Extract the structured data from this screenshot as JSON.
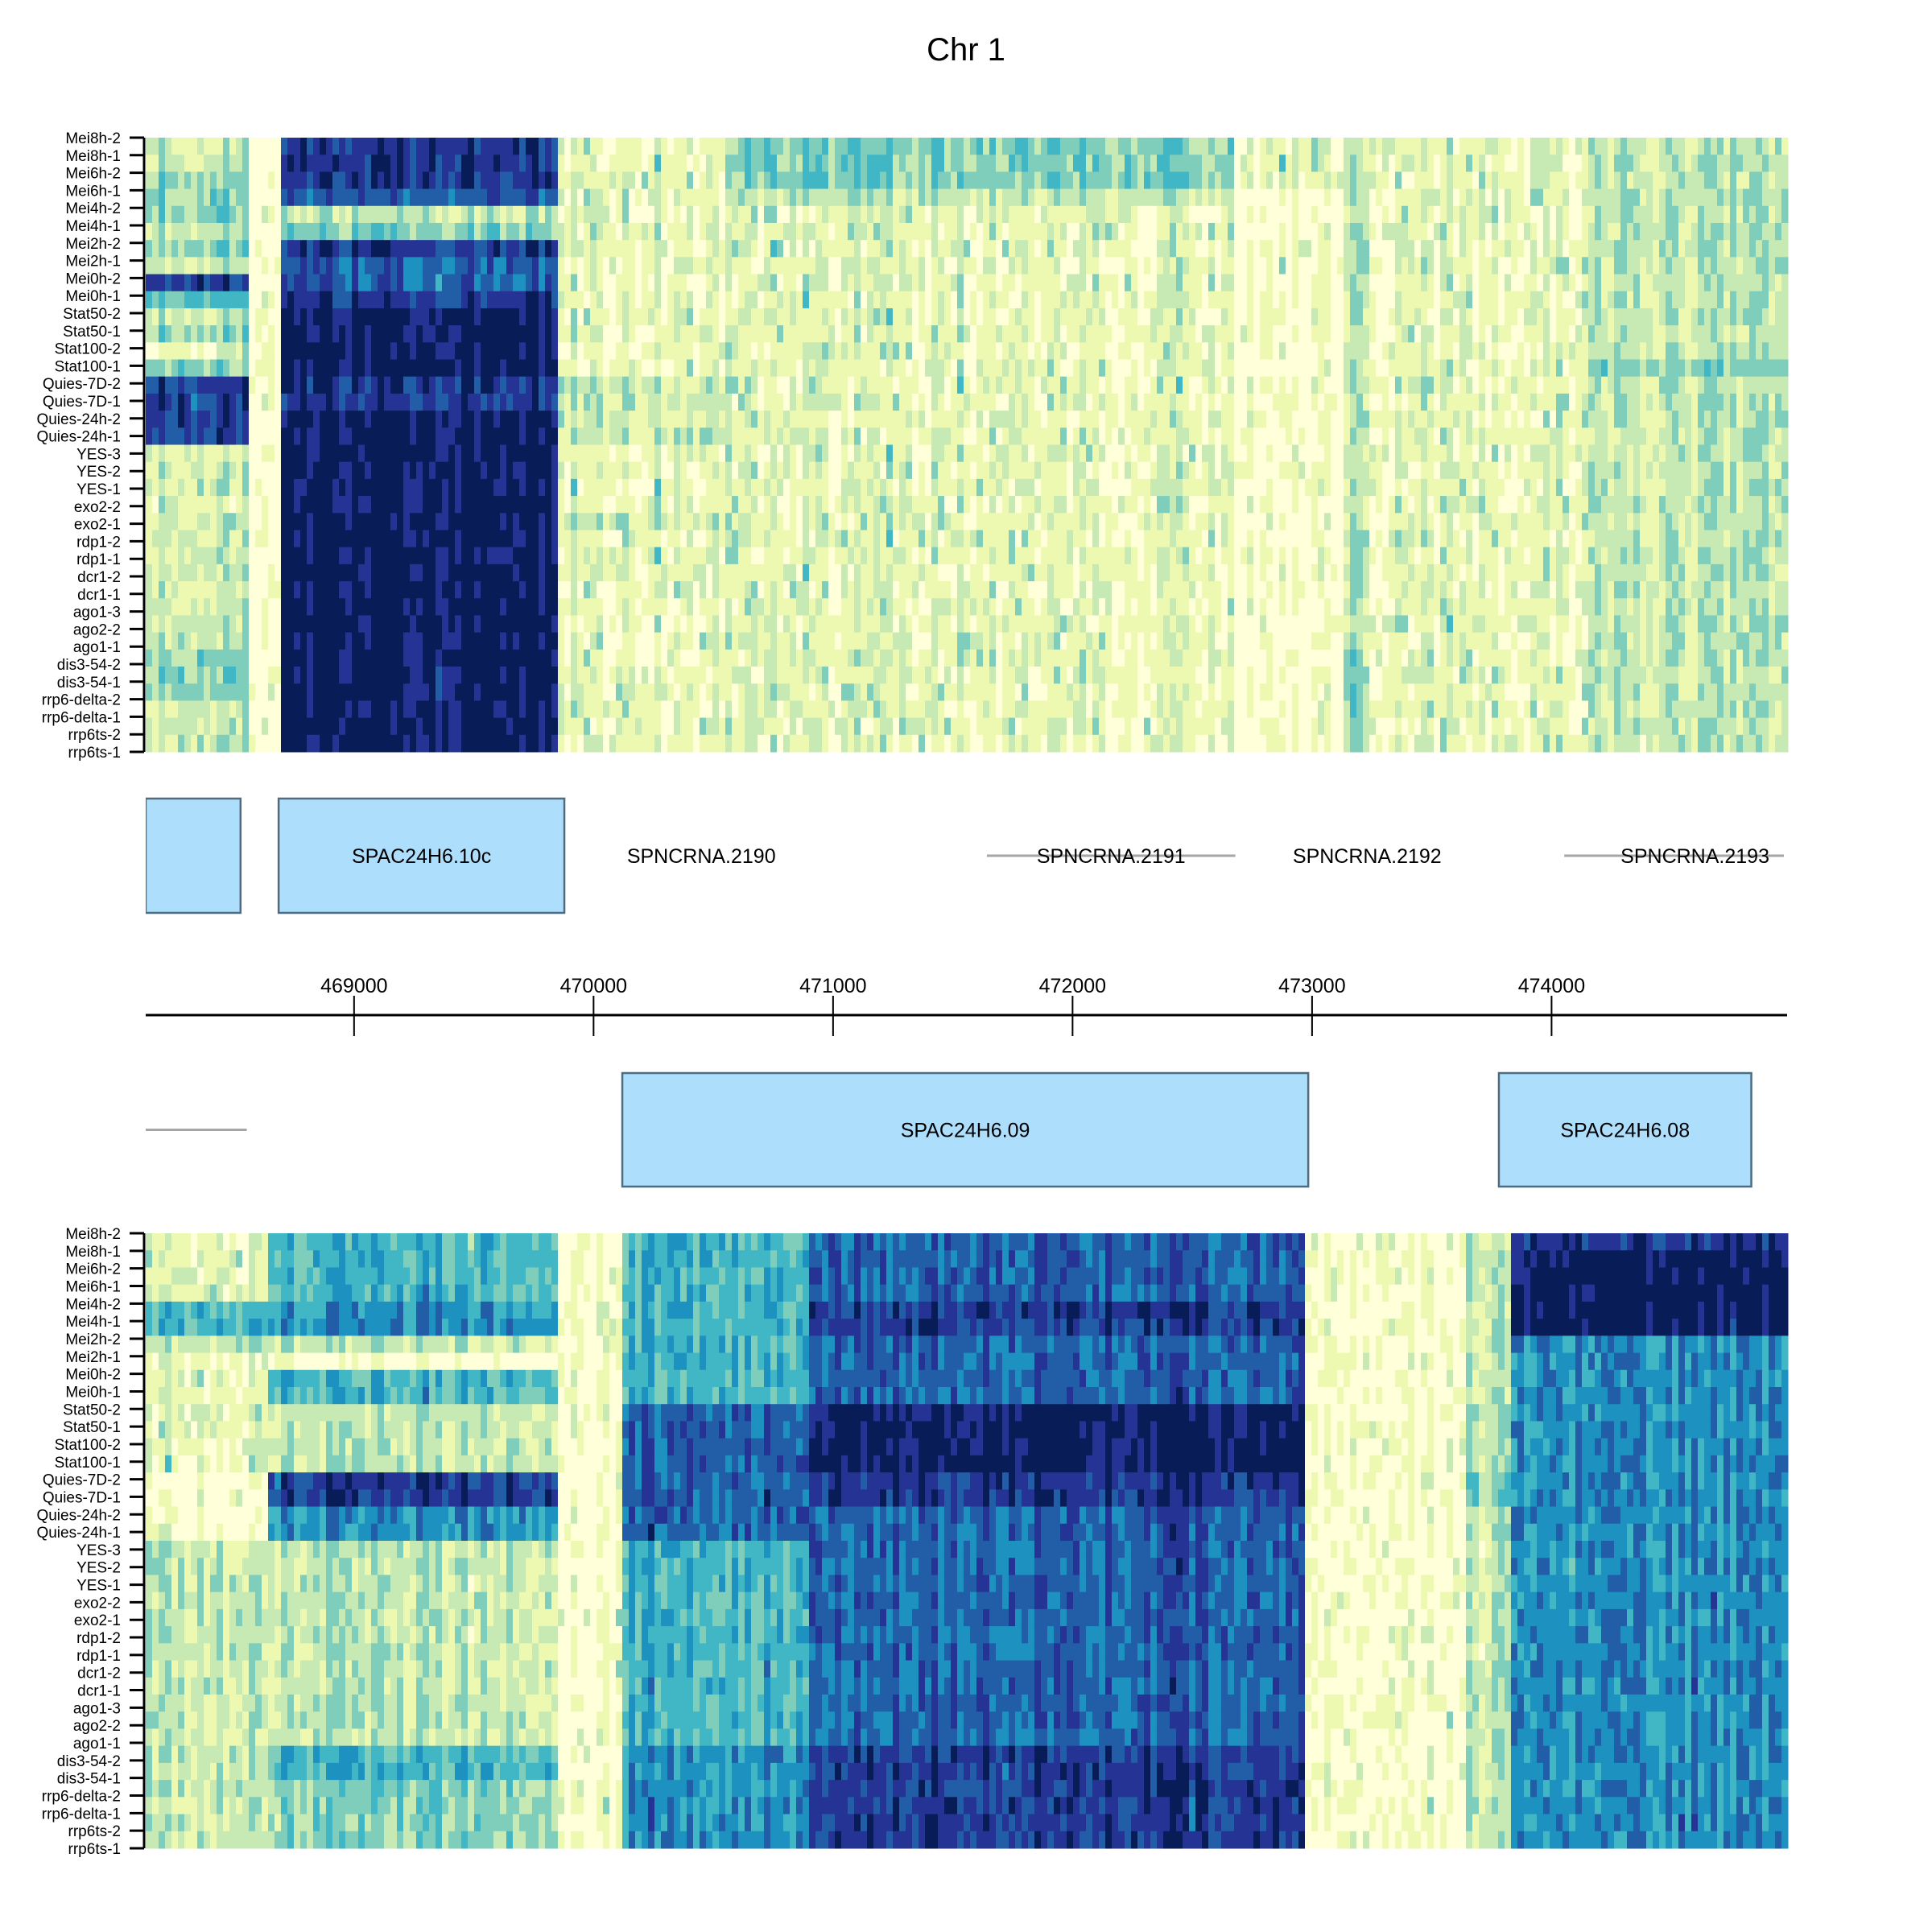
{
  "chart_data": {
    "type": "heatmap",
    "title": "Chr 1",
    "xlim": [
      468130,
      474970
    ],
    "axis_ticks": [
      469000,
      470000,
      471000,
      472000,
      473000,
      474000
    ],
    "axis_tick_labels": [
      "469000",
      "470000",
      "471000",
      "472000",
      "473000",
      "474000"
    ],
    "row_labels": [
      "Mei8h-2",
      "Mei8h-1",
      "Mei6h-2",
      "Mei6h-1",
      "Mei4h-2",
      "Mei4h-1",
      "Mei2h-2",
      "Mei2h-1",
      "Mei0h-2",
      "Mei0h-1",
      "Stat50-2",
      "Stat50-1",
      "Stat100-2",
      "Stat100-1",
      "Quies-7D-2",
      "Quies-7D-1",
      "Quies-24h-2",
      "Quies-24h-1",
      "YES-3",
      "YES-2",
      "YES-1",
      "exo2-2",
      "exo2-1",
      "rdp1-2",
      "rdp1-1",
      "dcr1-2",
      "dcr1-1",
      "ago1-3",
      "ago2-2",
      "ago1-1",
      "dis3-54-2",
      "dis3-54-1",
      "rrp6-delta-2",
      "rrp6-delta-1",
      "rrp6ts-2",
      "rrp6ts-1"
    ],
    "colorscale": [
      "#FFFFD9",
      "#EDF8B1",
      "#C7E9B4",
      "#7FCDBB",
      "#41B6C4",
      "#1D91C0",
      "#225EA8",
      "#253494",
      "#081D58"
    ],
    "heatmaps": [
      {
        "name": "top-strand",
        "regions": [
          {
            "start": 468130,
            "end": 468552,
            "levels": "223332327423137777222122222222333222"
          },
          {
            "start": 468552,
            "end": 468695,
            "levels": "000000000000000000000000000000000000"
          },
          {
            "start": 468695,
            "end": 469847,
            "levels": "777623766788887788888888888888888888"
          },
          {
            "start": 469847,
            "end": 470582,
            "levels": "111111111111112222111121111111111111"
          },
          {
            "start": 470582,
            "end": 472666,
            "levels": "333211111111111111111111111111111111"
          },
          {
            "start": 472666,
            "end": 473127,
            "levels": "111000000000000000000000000000000000"
          },
          {
            "start": 473127,
            "end": 473200,
            "levels": "222222222222222222222222222222333322"
          },
          {
            "start": 473200,
            "end": 474156,
            "levels": "111111111111111111111111111111111111"
          },
          {
            "start": 474156,
            "end": 474970,
            "levels": "222222222222232222222222222222222222"
          }
        ]
      },
      {
        "name": "bottom-strand",
        "regions": [
          {
            "start": 468130,
            "end": 468629,
            "levels": "111144211111110000222222222222222222"
          },
          {
            "start": 468629,
            "end": 469863,
            "levels": "444455204422227755222222222222443333"
          },
          {
            "start": 469863,
            "end": 470120,
            "levels": "000000000000000000000000000000000000"
          },
          {
            "start": 470120,
            "end": 470891,
            "levels": "444444444466666666444444444444555555"
          },
          {
            "start": 470891,
            "end": 472973,
            "levels": "666677666688887766666666666666777777"
          },
          {
            "start": 472973,
            "end": 473641,
            "levels": "000000000000000000000000000000000000"
          },
          {
            "start": 473641,
            "end": 473836,
            "levels": "222222222222223322222222222222222222"
          },
          {
            "start": 473836,
            "end": 474970,
            "levels": "788888555555555555555555555555555555"
          }
        ]
      }
    ],
    "genes_top": [
      {
        "name": "",
        "start": 468130,
        "end": 468526,
        "kind": "box"
      },
      {
        "name": "SPAC24H6.10c",
        "start": 468685,
        "end": 469878,
        "kind": "box"
      },
      {
        "name": "SPNCRNA.2190",
        "start": 470300,
        "end": 470600,
        "kind": "label"
      },
      {
        "name": "SPNCRNA.2191",
        "start": 471642,
        "end": 472680,
        "kind": "line"
      },
      {
        "name": "SPNCRNA.2192",
        "start": 473100,
        "end": 473360,
        "kind": "label"
      },
      {
        "name": "SPNCRNA.2193",
        "start": 474053,
        "end": 474970,
        "kind": "line"
      }
    ],
    "genes_bottom": [
      {
        "name": "",
        "start": 468130,
        "end": 468552,
        "kind": "line"
      },
      {
        "name": "SPAC24H6.09",
        "start": 470120,
        "end": 472984,
        "kind": "box"
      },
      {
        "name": "SPAC24H6.08",
        "start": 473780,
        "end": 474834,
        "kind": "box"
      }
    ],
    "gene_box_color": "#ADDFFC",
    "gene_border_color": "#4F6B80",
    "ncrna_line_color": "#A6A6A6"
  }
}
